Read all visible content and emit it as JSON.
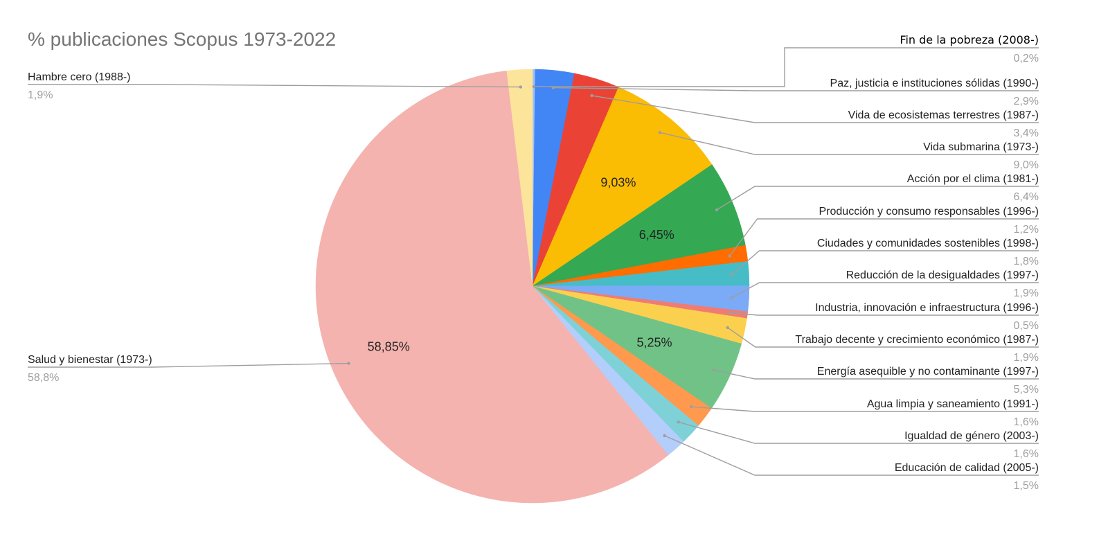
{
  "chart_data": {
    "type": "pie",
    "title": "% publicaciones Scopus 1973-2022",
    "slices": [
      {
        "label": "Fin de la pobreza (2008-)",
        "value": 0.2,
        "value_label": "0,2%",
        "color": "#9fc0f5"
      },
      {
        "label": "Paz, justicia e instituciones sólidas (1990-)",
        "value": 2.9,
        "value_label": "2,9%",
        "color": "#4285f4"
      },
      {
        "label": "Vida de ecosistemas terrestres (1987-)",
        "value": 3.4,
        "value_label": "3,4%",
        "color": "#ea4335"
      },
      {
        "label": "Vida submarina (1973-)",
        "value": 9.03,
        "value_label": "9,0%",
        "inside_label": "9,03%",
        "color": "#fbbc04"
      },
      {
        "label": "Acción por el clima (1981-)",
        "value": 6.45,
        "value_label": "6,4%",
        "inside_label": "6,45%",
        "color": "#34a853"
      },
      {
        "label": "Producción y consumo responsables (1996-)",
        "value": 1.2,
        "value_label": "1,2%",
        "color": "#ff6d01"
      },
      {
        "label": "Ciudades y comunidades sostenibles (1998-)",
        "value": 1.8,
        "value_label": "1,8%",
        "color": "#46bdc6"
      },
      {
        "label": "Reducción de la desigualdades (1997-)",
        "value": 1.9,
        "value_label": "1,9%",
        "color": "#7baaf7"
      },
      {
        "label": "Industria, innovación e infraestructura (1996-)",
        "value": 0.5,
        "value_label": "0,5%",
        "color": "#f07b72"
      },
      {
        "label": "Trabajo decente y crecimiento económico (1987-)",
        "value": 1.9,
        "value_label": "1,9%",
        "color": "#fcd04f"
      },
      {
        "label": "Energía asequible y no contaminante (1997-)",
        "value": 5.25,
        "value_label": "5,3%",
        "inside_label": "5,25%",
        "color": "#71c287"
      },
      {
        "label": "Agua limpia y saneamiento (1991-)",
        "value": 1.6,
        "value_label": "1,6%",
        "color": "#ff994d"
      },
      {
        "label": "Igualdad de género (2003-)",
        "value": 1.6,
        "value_label": "1,6%",
        "color": "#7ed1d7"
      },
      {
        "label": "Educación de calidad (2005-)",
        "value": 1.5,
        "value_label": "1,5%",
        "color": "#b3cefb"
      },
      {
        "label": "Salud y bienestar (1973-)",
        "value": 58.85,
        "value_label": "58,8%",
        "inside_label": "58,85%",
        "color": "#f4b3af"
      },
      {
        "label": "Hambre cero (1988-)",
        "value": 1.9,
        "value_label": "1,9%",
        "color": "#fde49b"
      }
    ],
    "start_angle": "12 o'clock",
    "direction": "clockwise",
    "legend": "none (leader-line labels)"
  }
}
